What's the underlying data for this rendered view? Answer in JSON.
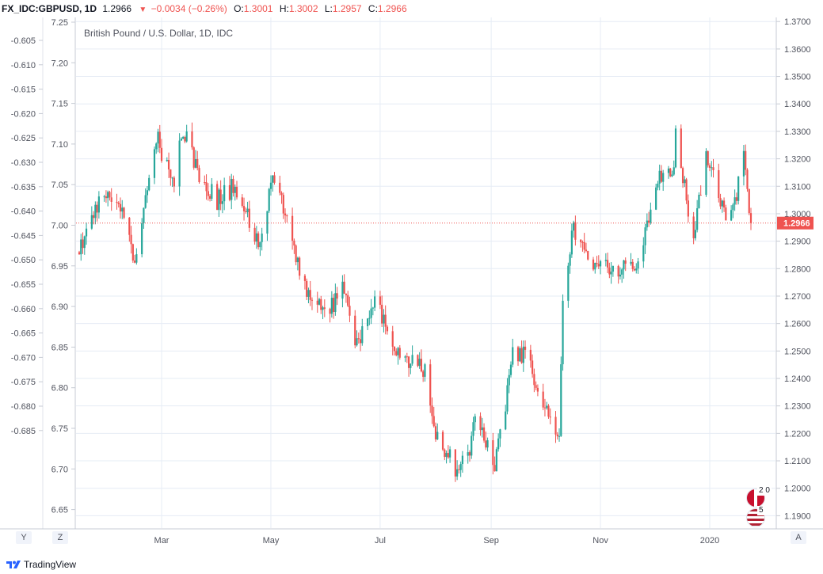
{
  "header": {
    "symbol": "FX_IDC:GBPUSD, 1D",
    "price": "1.2966",
    "arrow": "▼",
    "change": "−0.0034 (−0.26%)",
    "open_label": "O:",
    "open": "1.3001",
    "high_label": "H:",
    "high": "1.3002",
    "low_label": "L:",
    "low": "1.2957",
    "close_label": "C:",
    "close": "1.2966"
  },
  "footer": {
    "brand": "TradingView",
    "left_scale_button": "Y",
    "mid_scale_button": "Z",
    "auto_button": "A"
  },
  "event_markers": [
    {
      "label": "2 0",
      "icon": "uk-flag-icon"
    },
    {
      "label": "5",
      "icon": "us-flag-icon"
    }
  ],
  "colors": {
    "up": "#26a69a",
    "down": "#ef5350",
    "grid": "#e6ecf5",
    "price_line": "#ef5350",
    "axis_text": "#50535e"
  },
  "chart_data": {
    "type": "candlestick",
    "title": "British Pound / U.S. Dollar, 1D, IDC",
    "right_axis": {
      "ylim": [
        1.1855,
        1.3715
      ],
      "ticks": [
        "1.3700",
        "1.3600",
        "1.3500",
        "1.3400",
        "1.3300",
        "1.3200",
        "1.3100",
        "1.3000",
        "1.2900",
        "1.2800",
        "1.2700",
        "1.2600",
        "1.2500",
        "1.2400",
        "1.2300",
        "1.2200",
        "1.2100",
        "1.2000",
        "1.1900"
      ],
      "last_price_label": "1.2966"
    },
    "inner_left_axis": {
      "ticks": [
        "7.25",
        "7.20",
        "7.15",
        "7.10",
        "7.05",
        "7.00",
        "6.95",
        "6.90",
        "6.85",
        "6.80",
        "6.75",
        "6.70",
        "6.65"
      ]
    },
    "outer_left_axis": {
      "ticks": [
        "-0.605",
        "-0.610",
        "-0.615",
        "-0.620",
        "-0.625",
        "-0.630",
        "-0.635",
        "-0.640",
        "-0.645",
        "-0.650",
        "-0.655",
        "-0.660",
        "-0.665",
        "-0.670",
        "-0.675",
        "-0.680",
        "-0.685"
      ]
    },
    "x_axis": {
      "start": "2019-01-14",
      "end": "2020-01-24",
      "ticks": [
        {
          "label": "Mar",
          "date": "2019-03-01"
        },
        {
          "label": "May",
          "date": "2019-05-01"
        },
        {
          "label": "Jul",
          "date": "2019-07-01"
        },
        {
          "label": "Sep",
          "date": "2019-09-01"
        },
        {
          "label": "Nov",
          "date": "2019-11-01"
        },
        {
          "label": "2020",
          "date": "2020-01-01"
        }
      ]
    },
    "anchors": [
      {
        "date": "2019-01-14",
        "close": 1.286
      },
      {
        "date": "2019-01-25",
        "close": 1.305
      },
      {
        "date": "2019-02-05",
        "close": 1.305
      },
      {
        "date": "2019-02-14",
        "close": 1.283
      },
      {
        "date": "2019-02-27",
        "close": 1.327
      },
      {
        "date": "2019-03-07",
        "close": 1.31
      },
      {
        "date": "2019-03-13",
        "close": 1.33
      },
      {
        "date": "2019-03-22",
        "close": 1.315
      },
      {
        "date": "2019-04-01",
        "close": 1.305
      },
      {
        "date": "2019-04-11",
        "close": 1.31
      },
      {
        "date": "2019-04-25",
        "close": 1.289
      },
      {
        "date": "2019-05-02",
        "close": 1.315
      },
      {
        "date": "2019-05-10",
        "close": 1.3
      },
      {
        "date": "2019-05-20",
        "close": 1.272
      },
      {
        "date": "2019-05-31",
        "close": 1.263
      },
      {
        "date": "2019-06-10",
        "close": 1.272
      },
      {
        "date": "2019-06-18",
        "close": 1.253
      },
      {
        "date": "2019-06-28",
        "close": 1.27
      },
      {
        "date": "2019-07-10",
        "close": 1.248
      },
      {
        "date": "2019-07-26",
        "close": 1.243
      },
      {
        "date": "2019-08-01",
        "close": 1.22
      },
      {
        "date": "2019-08-12",
        "close": 1.208
      },
      {
        "date": "2019-08-20",
        "close": 1.215
      },
      {
        "date": "2019-08-23",
        "close": 1.227
      },
      {
        "date": "2019-09-03",
        "close": 1.207
      },
      {
        "date": "2019-09-13",
        "close": 1.248
      },
      {
        "date": "2019-09-20",
        "close": 1.249
      },
      {
        "date": "2019-09-30",
        "close": 1.229
      },
      {
        "date": "2019-10-09",
        "close": 1.221
      },
      {
        "date": "2019-10-11",
        "close": 1.266
      },
      {
        "date": "2019-10-17",
        "close": 1.295
      },
      {
        "date": "2019-10-25",
        "close": 1.282
      },
      {
        "date": "2019-11-08",
        "close": 1.28
      },
      {
        "date": "2019-11-22",
        "close": 1.283
      },
      {
        "date": "2019-12-04",
        "close": 1.315
      },
      {
        "date": "2019-12-12",
        "close": 1.318
      },
      {
        "date": "2019-12-13",
        "close": 1.332
      },
      {
        "date": "2019-12-19",
        "close": 1.305
      },
      {
        "date": "2019-12-23",
        "close": 1.293
      },
      {
        "date": "2019-12-30",
        "close": 1.321
      },
      {
        "date": "2020-01-10",
        "close": 1.3
      },
      {
        "date": "2020-01-15",
        "close": 1.305
      },
      {
        "date": "2020-01-20",
        "close": 1.32
      },
      {
        "date": "2020-01-24",
        "close": 1.2966
      }
    ]
  }
}
